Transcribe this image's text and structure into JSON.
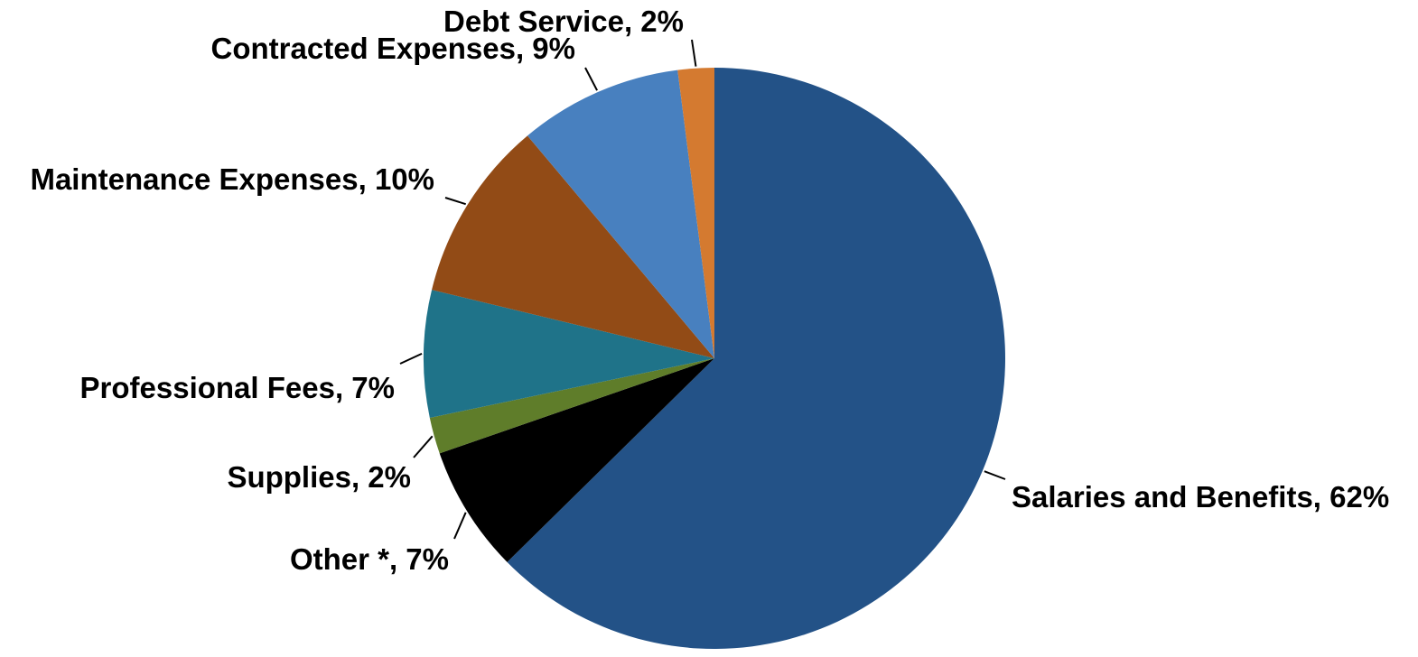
{
  "chart_data": {
    "type": "pie",
    "title": "",
    "start_angle_deg": 0,
    "direction": "clockwise",
    "slices": [
      {
        "name": "Salaries and Benefits",
        "value": 62,
        "label": "Salaries and Benefits, 62%",
        "color": "#235287"
      },
      {
        "name": "Other *",
        "value": 7,
        "label": "Other *, 7%",
        "color": "#000000"
      },
      {
        "name": "Supplies",
        "value": 2,
        "label": "Supplies, 2%",
        "color": "#5f7d2a"
      },
      {
        "name": "Professional Fees",
        "value": 7,
        "label": "Professional Fees, 7%",
        "color": "#1f7389"
      },
      {
        "name": "Maintenance Expenses",
        "value": 10,
        "label": "Maintenance Expenses, 10%",
        "color": "#924b16"
      },
      {
        "name": "Contracted Expenses",
        "value": 9,
        "label": "Contracted Expenses, 9%",
        "color": "#4880bf"
      },
      {
        "name": "Debt Service",
        "value": 2,
        "label": "Debt Service, 2%",
        "color": "#d47a30"
      }
    ]
  }
}
